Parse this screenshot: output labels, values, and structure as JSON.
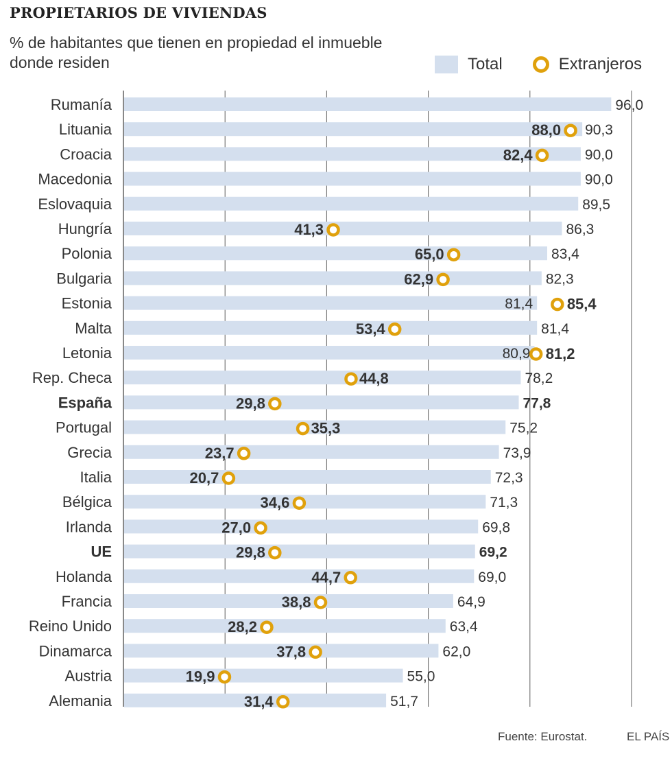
{
  "header": {
    "title": "PROPIETARIOS DE VIVIENDAS",
    "subtitle": "% de habitantes que tienen en propiedad el inmueble donde residen"
  },
  "legend": {
    "total": "Total",
    "foreign": "Extranjeros"
  },
  "footer": {
    "source": "Fuente: Eurostat.",
    "brand": "EL PAÍS"
  },
  "colors": {
    "bar": "#d4dfee",
    "ring": "#e0a10c",
    "grid": "#6b6b6b",
    "text": "#333333"
  },
  "chart_data": {
    "type": "bar",
    "orientation": "horizontal",
    "xlim": [
      0,
      100
    ],
    "grid": true,
    "legend_position": "top-right",
    "categories": [
      "Rumanía",
      "Lituania",
      "Croacia",
      "Macedonia",
      "Eslovaquia",
      "Hungría",
      "Polonia",
      "Bulgaria",
      "Estonia",
      "Malta",
      "Letonia",
      "Rep. Checa",
      "España",
      "Portugal",
      "Grecia",
      "Italia",
      "Bélgica",
      "Irlanda",
      "UE",
      "Holanda",
      "Francia",
      "Reino Unido",
      "Dinamarca",
      "Austria",
      "Alemania"
    ],
    "highlight": [
      "España",
      "UE"
    ],
    "series": [
      {
        "name": "Total",
        "values": [
          96.0,
          90.3,
          90.0,
          90.0,
          89.5,
          86.3,
          83.4,
          82.3,
          81.4,
          81.4,
          80.9,
          78.2,
          77.8,
          75.2,
          73.9,
          72.3,
          71.3,
          69.8,
          69.2,
          69.0,
          64.9,
          63.4,
          62.0,
          55.0,
          51.7
        ],
        "labels": [
          "96,0",
          "90,3",
          "90,0",
          "90,0",
          "89,5",
          "86,3",
          "83,4",
          "82,3",
          "81,4",
          "81,4",
          "80,9",
          "78,2",
          "77,8",
          "75,2",
          "73,9",
          "72,3",
          "71,3",
          "69,8",
          "69,2",
          "69,0",
          "64,9",
          "63,4",
          "62,0",
          "55,0",
          "51,7"
        ]
      },
      {
        "name": "Extranjeros",
        "values": [
          null,
          88.0,
          82.4,
          null,
          null,
          41.3,
          65.0,
          62.9,
          85.4,
          53.4,
          81.2,
          44.8,
          29.8,
          35.3,
          23.7,
          20.7,
          34.6,
          27.0,
          29.8,
          44.7,
          38.8,
          28.2,
          37.8,
          19.9,
          31.4
        ],
        "labels": [
          null,
          "88,0",
          "82,4",
          null,
          null,
          "41,3",
          "65,0",
          "62,9",
          "85,4",
          "53,4",
          "81,2",
          "44,8",
          "29,8",
          "35,3",
          "23,7",
          "20,7",
          "34,6",
          "27,0",
          "29,8",
          "44,7",
          "38,8",
          "28,2",
          "37,8",
          "19,9",
          "31,4"
        ]
      }
    ]
  }
}
